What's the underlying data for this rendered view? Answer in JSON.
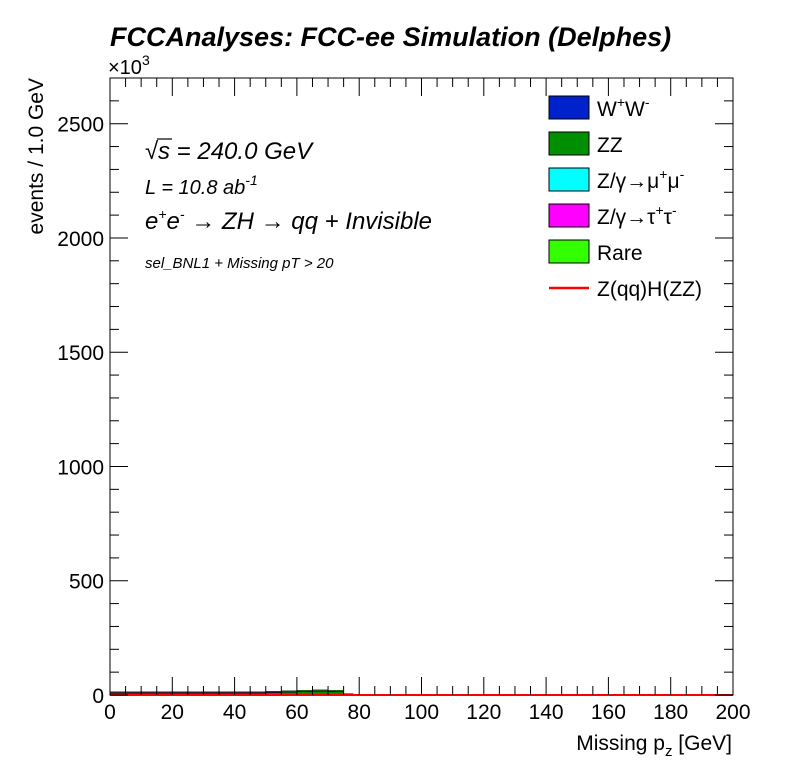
{
  "title": "FCCAnalyses: FCC-ee Simulation (Delphes)",
  "multiplier": {
    "prefix": "×10",
    "exponent": "3"
  },
  "annotations": {
    "sqrt_symbol": "√",
    "energy_s": "s",
    "energy_rest": " = 240.0 GeV",
    "lumi_prefix": "L = 10.8 ab",
    "lumi_exp": "-1",
    "process": {
      "e1": "e",
      "e1_sup": "+",
      "e2": "e",
      "e2_sup": "-",
      "arrow1": " → ZH ",
      "arrow2": "→ qq + Invisible"
    },
    "selection": "sel_BNL1 + Missing pT > 20"
  },
  "legend_entries": [
    {
      "key": "ww",
      "color": "#0022cc",
      "type": "fill",
      "parts": [
        [
          "W",
          ""
        ],
        [
          "+",
          "sup"
        ],
        [
          "W",
          ""
        ],
        [
          "-",
          "sup"
        ]
      ]
    },
    {
      "key": "zz",
      "color": "#008f00",
      "type": "fill",
      "parts": [
        [
          "ZZ",
          ""
        ]
      ]
    },
    {
      "key": "zmumu",
      "color": "#00ffff",
      "type": "fill",
      "parts": [
        [
          "Z/γ→μ",
          ""
        ],
        [
          "+",
          "sup"
        ],
        [
          "μ",
          ""
        ],
        [
          "-",
          "sup"
        ]
      ]
    },
    {
      "key": "ztautau",
      "color": "#ff00ff",
      "type": "fill",
      "parts": [
        [
          "Z/γ→τ",
          ""
        ],
        [
          "+",
          "sup"
        ],
        [
          "τ",
          ""
        ],
        [
          "-",
          "sup"
        ]
      ]
    },
    {
      "key": "rare",
      "color": "#33ff00",
      "type": "fill",
      "parts": [
        [
          "Rare",
          ""
        ]
      ]
    },
    {
      "key": "signal",
      "color": "#ff0000",
      "type": "line",
      "parts": [
        [
          "Z(qq)H(ZZ)",
          ""
        ]
      ]
    }
  ],
  "axes": {
    "xlabel_main": "Missing p",
    "xlabel_sub": "z",
    "xlabel_unit": " [GeV]",
    "ylabel": "events / 1.0 GeV"
  },
  "chart_data": {
    "type": "bar",
    "stacked": true,
    "xlim": [
      0,
      200
    ],
    "ylim": [
      0,
      2700
    ],
    "y_units": "×10^3",
    "x_ticks": [
      0,
      20,
      40,
      60,
      80,
      100,
      120,
      140,
      160,
      180,
      200
    ],
    "y_ticks": [
      0,
      500,
      1000,
      1500,
      2000,
      2500
    ],
    "bin_edges": [
      0,
      10,
      20,
      30,
      40,
      50,
      55,
      60,
      65,
      70,
      75,
      78,
      80,
      200
    ],
    "series": [
      {
        "name": "W+W-",
        "color": "#0022cc",
        "values": [
          2,
          2,
          2,
          2,
          2,
          2,
          2,
          2,
          2,
          1,
          0.5,
          0,
          0
        ]
      },
      {
        "name": "ZZ",
        "color": "#008f00",
        "values": [
          8,
          8,
          8,
          8,
          8,
          10,
          12,
          14,
          16,
          15,
          4,
          1,
          0
        ]
      },
      {
        "name": "Z/γ→μ+μ-",
        "color": "#00ffff",
        "values": [
          0.5,
          0.5,
          0.5,
          0.5,
          0.5,
          0.5,
          0.5,
          0.5,
          0.5,
          0.5,
          0.2,
          0,
          0
        ]
      },
      {
        "name": "Z/γ→τ+τ-",
        "color": "#ff00ff",
        "values": [
          1,
          1,
          1,
          1,
          1,
          1,
          1,
          1,
          1,
          1,
          0.5,
          0,
          0
        ]
      },
      {
        "name": "Rare",
        "color": "#33ff00",
        "values": [
          3,
          3,
          3,
          3,
          3,
          3,
          3,
          3,
          3,
          3,
          1,
          0.3,
          0
        ]
      },
      {
        "name": "Z(qq)H(ZZ)",
        "color": "#ff0000",
        "style": "line",
        "values": [
          0.05,
          0.05,
          0.05,
          0.05,
          0.05,
          0.05,
          0.05,
          0.05,
          0.05,
          0.05,
          0.02,
          0,
          0
        ]
      }
    ],
    "legend": "top-right",
    "grid": false
  }
}
